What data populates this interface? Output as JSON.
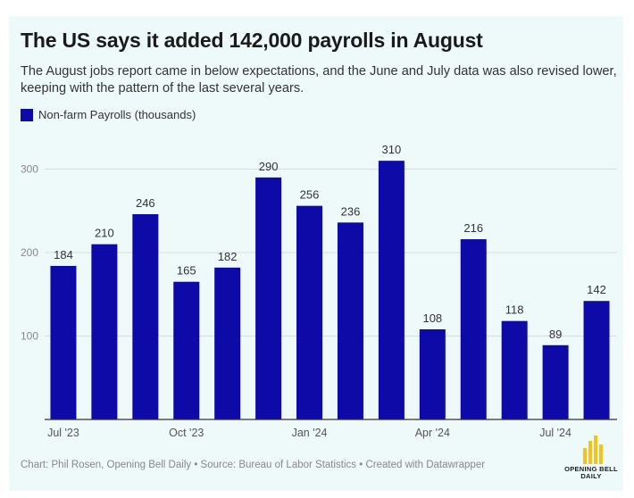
{
  "title": "The US says it added 142,000 payrolls in August",
  "subtitle": "The August jobs report came in below expectations, and the June and July data was also revised lower, keeping with the pattern of the last several years.",
  "legend": {
    "label": "Non-farm Payrolls (thousands)",
    "color": "#0d0aa8"
  },
  "footer": "Chart: Phil Rosen, Opening Bell Daily • Source: Bureau of Labor Statistics • Created with Datawrapper",
  "logo": {
    "line1": "OPENING BELL",
    "line2": "DAILY",
    "color": "#f2c31b"
  },
  "chart_data": {
    "type": "bar",
    "title": "The US says it added 142,000 payrolls in August",
    "xlabel": "",
    "ylabel": "",
    "categories": [
      "Jul 2023",
      "Aug 2023",
      "Sep 2023",
      "Oct 2023",
      "Nov 2023",
      "Dec 2023",
      "Jan 2024",
      "Feb 2024",
      "Mar 2024",
      "Apr 2024",
      "May 2024",
      "Jun 2024",
      "Jul 2024",
      "Aug 2024"
    ],
    "x_tick_labels": [
      {
        "index": 0,
        "label": "Jul '23"
      },
      {
        "index": 3,
        "label": "Oct '23"
      },
      {
        "index": 6,
        "label": "Jan '24"
      },
      {
        "index": 9,
        "label": "Apr '24"
      },
      {
        "index": 12,
        "label": "Jul '24"
      }
    ],
    "series": [
      {
        "name": "Non-farm Payrolls (thousands)",
        "values": [
          184,
          210,
          246,
          165,
          182,
          290,
          256,
          236,
          310,
          108,
          216,
          118,
          89,
          142
        ]
      }
    ],
    "y_ticks": [
      100,
      200,
      300
    ],
    "ylim": [
      0,
      330
    ],
    "grid": true,
    "legend_position": "top-left",
    "bar_color": "#0d0aa8"
  }
}
